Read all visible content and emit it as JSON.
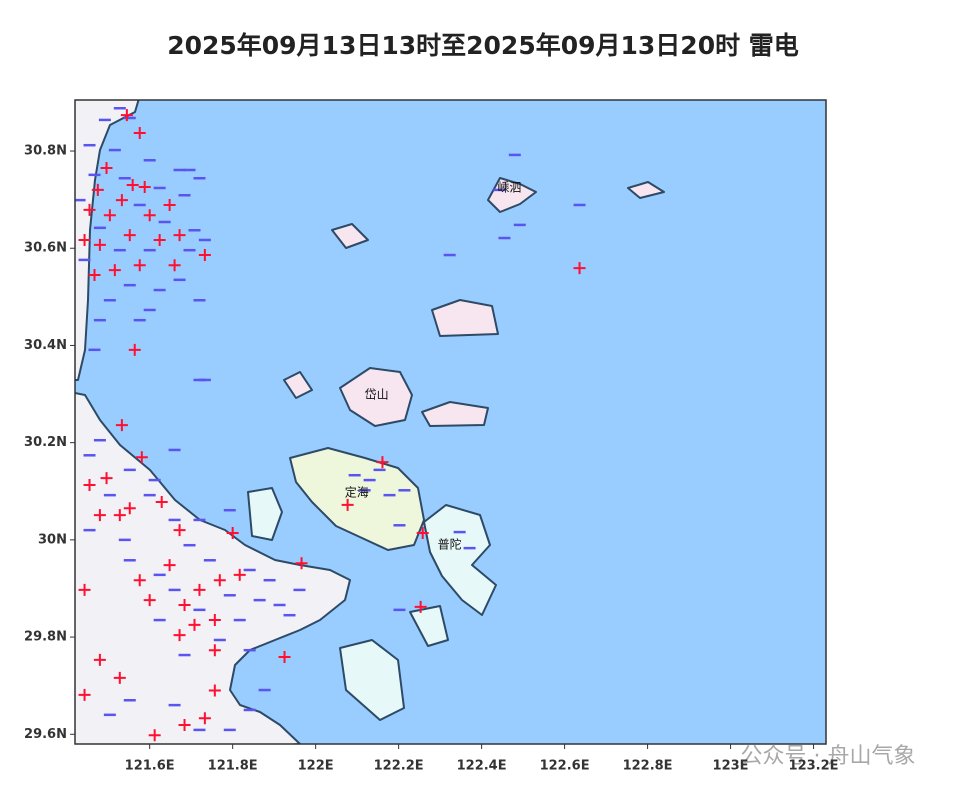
{
  "title": "2025年09月13日13时至2025年09月13日20时 雷电",
  "watermark": "公众号 · 舟山气象",
  "map": {
    "xlim": [
      121.42,
      123.23
    ],
    "ylim": [
      29.58,
      30.905
    ],
    "sea_color": "#99ccff",
    "xticks": [
      {
        "value": 121.6,
        "label": "121.6E"
      },
      {
        "value": 121.8,
        "label": "121.8E"
      },
      {
        "value": 122,
        "label": "122E"
      },
      {
        "value": 122.2,
        "label": "122.2E"
      },
      {
        "value": 122.4,
        "label": "122.4E"
      },
      {
        "value": 122.6,
        "label": "122.6E"
      },
      {
        "value": 122.8,
        "label": "122.8E"
      },
      {
        "value": 123,
        "label": "123E"
      },
      {
        "value": 123.2,
        "label": "123.2E"
      }
    ],
    "yticks": [
      {
        "value": 29.6,
        "label": "29.6N"
      },
      {
        "value": 29.8,
        "label": "29.8N"
      },
      {
        "value": 30,
        "label": "30N"
      },
      {
        "value": 30.2,
        "label": "30.2N"
      },
      {
        "value": 30.4,
        "label": "30.4N"
      },
      {
        "value": 30.6,
        "label": "30.6N"
      },
      {
        "value": 30.8,
        "label": "30.8N"
      }
    ],
    "places": [
      {
        "name": "嵊泗",
        "lon": 122.467,
        "lat": 30.724
      },
      {
        "name": "岱山",
        "lon": 122.147,
        "lat": 30.298
      },
      {
        "name": "定海",
        "lon": 122.099,
        "lat": 30.096
      },
      {
        "name": "普陀",
        "lon": 122.323,
        "lat": 29.989
      }
    ],
    "lightning": {
      "negative": {
        "color": "#5a55f0",
        "points": [
          [
            121.528,
            30.888
          ],
          [
            121.552,
            30.868
          ],
          [
            121.492,
            30.864
          ],
          [
            121.455,
            30.812
          ],
          [
            121.516,
            30.802
          ],
          [
            121.6,
            30.781
          ],
          [
            121.672,
            30.761
          ],
          [
            121.72,
            30.744
          ],
          [
            121.467,
            30.751
          ],
          [
            121.54,
            30.744
          ],
          [
            121.624,
            30.724
          ],
          [
            121.684,
            30.709
          ],
          [
            121.431,
            30.699
          ],
          [
            121.576,
            30.689
          ],
          [
            121.636,
            30.654
          ],
          [
            121.708,
            30.637
          ],
          [
            121.48,
            30.642
          ],
          [
            121.528,
            30.596
          ],
          [
            121.6,
            30.596
          ],
          [
            121.696,
            30.596
          ],
          [
            121.733,
            30.617
          ],
          [
            121.443,
            30.576
          ],
          [
            121.552,
            30.524
          ],
          [
            121.624,
            30.514
          ],
          [
            121.504,
            30.493
          ],
          [
            121.6,
            30.473
          ],
          [
            121.672,
            30.535
          ],
          [
            121.576,
            30.452
          ],
          [
            121.48,
            30.452
          ],
          [
            121.467,
            30.391
          ],
          [
            121.72,
            30.329
          ],
          [
            121.72,
            30.493
          ],
          [
            122.443,
            30.72
          ],
          [
            122.492,
            30.648
          ],
          [
            122.455,
            30.621
          ],
          [
            122.48,
            30.792
          ],
          [
            122.323,
            30.586
          ],
          [
            122.636,
            30.689
          ],
          [
            122.094,
            30.133
          ],
          [
            122.13,
            30.123
          ],
          [
            122.178,
            30.092
          ],
          [
            122.214,
            30.102
          ],
          [
            122.118,
            30.102
          ],
          [
            122.154,
            30.144
          ],
          [
            122.347,
            30.016
          ],
          [
            122.371,
            29.983
          ],
          [
            122.202,
            30.03
          ],
          [
            121.48,
            30.205
          ],
          [
            121.455,
            30.174
          ],
          [
            121.552,
            30.144
          ],
          [
            121.612,
            30.123
          ],
          [
            121.504,
            30.092
          ],
          [
            121.6,
            30.092
          ],
          [
            121.66,
            30.041
          ],
          [
            121.455,
            30.02
          ],
          [
            121.54,
            30.0
          ],
          [
            121.72,
            30.041
          ],
          [
            121.793,
            30.061
          ],
          [
            121.696,
            29.989
          ],
          [
            121.552,
            29.958
          ],
          [
            121.624,
            29.928
          ],
          [
            121.745,
            29.958
          ],
          [
            121.841,
            29.938
          ],
          [
            121.889,
            29.917
          ],
          [
            121.793,
            29.886
          ],
          [
            121.865,
            29.876
          ],
          [
            121.66,
            29.897
          ],
          [
            121.72,
            29.856
          ],
          [
            121.817,
            29.835
          ],
          [
            121.937,
            29.845
          ],
          [
            121.624,
            29.835
          ],
          [
            121.769,
            29.794
          ],
          [
            121.684,
            29.763
          ],
          [
            121.841,
            29.773
          ],
          [
            121.877,
            29.691
          ],
          [
            121.552,
            29.67
          ],
          [
            121.504,
            29.64
          ],
          [
            121.66,
            29.66
          ],
          [
            121.72,
            29.609
          ],
          [
            121.793,
            29.609
          ],
          [
            121.841,
            29.65
          ],
          [
            121.913,
            29.866
          ],
          [
            121.961,
            29.897
          ],
          [
            121.733,
            30.329
          ],
          [
            121.66,
            30.185
          ],
          [
            122.202,
            29.856
          ],
          [
            121.696,
            30.761
          ]
        ]
      },
      "positive": {
        "color": "#ff1030",
        "points": [
          [
            121.545,
            30.874
          ],
          [
            121.576,
            30.837
          ],
          [
            121.496,
            30.765
          ],
          [
            121.475,
            30.72
          ],
          [
            121.559,
            30.73
          ],
          [
            121.588,
            30.726
          ],
          [
            121.455,
            30.679
          ],
          [
            121.504,
            30.668
          ],
          [
            121.533,
            30.699
          ],
          [
            121.6,
            30.668
          ],
          [
            121.648,
            30.689
          ],
          [
            121.443,
            30.617
          ],
          [
            121.48,
            30.607
          ],
          [
            121.552,
            30.627
          ],
          [
            121.624,
            30.617
          ],
          [
            121.672,
            30.627
          ],
          [
            121.516,
            30.555
          ],
          [
            121.467,
            30.545
          ],
          [
            121.576,
            30.565
          ],
          [
            121.66,
            30.565
          ],
          [
            121.733,
            30.586
          ],
          [
            121.564,
            30.391
          ],
          [
            121.533,
            30.236
          ],
          [
            121.581,
            30.17
          ],
          [
            121.455,
            30.113
          ],
          [
            121.496,
            30.127
          ],
          [
            121.48,
            30.051
          ],
          [
            121.528,
            30.051
          ],
          [
            121.552,
            30.065
          ],
          [
            121.629,
            30.078
          ],
          [
            121.672,
            30.02
          ],
          [
            121.576,
            29.917
          ],
          [
            121.648,
            29.948
          ],
          [
            121.6,
            29.876
          ],
          [
            121.684,
            29.866
          ],
          [
            121.72,
            29.897
          ],
          [
            121.769,
            29.917
          ],
          [
            121.817,
            29.928
          ],
          [
            121.708,
            29.825
          ],
          [
            121.757,
            29.835
          ],
          [
            121.672,
            29.804
          ],
          [
            121.757,
            29.773
          ],
          [
            121.48,
            29.753
          ],
          [
            121.528,
            29.716
          ],
          [
            121.443,
            29.681
          ],
          [
            121.757,
            29.69
          ],
          [
            121.612,
            29.598
          ],
          [
            121.684,
            29.619
          ],
          [
            121.733,
            29.633
          ],
          [
            121.966,
            29.952
          ],
          [
            121.925,
            29.759
          ],
          [
            121.8,
            30.014
          ],
          [
            122.077,
            30.072
          ],
          [
            122.161,
            30.16
          ],
          [
            122.258,
            30.014
          ],
          [
            122.253,
            29.862
          ],
          [
            122.636,
            30.559
          ],
          [
            121.443,
            29.897
          ]
        ]
      }
    }
  }
}
